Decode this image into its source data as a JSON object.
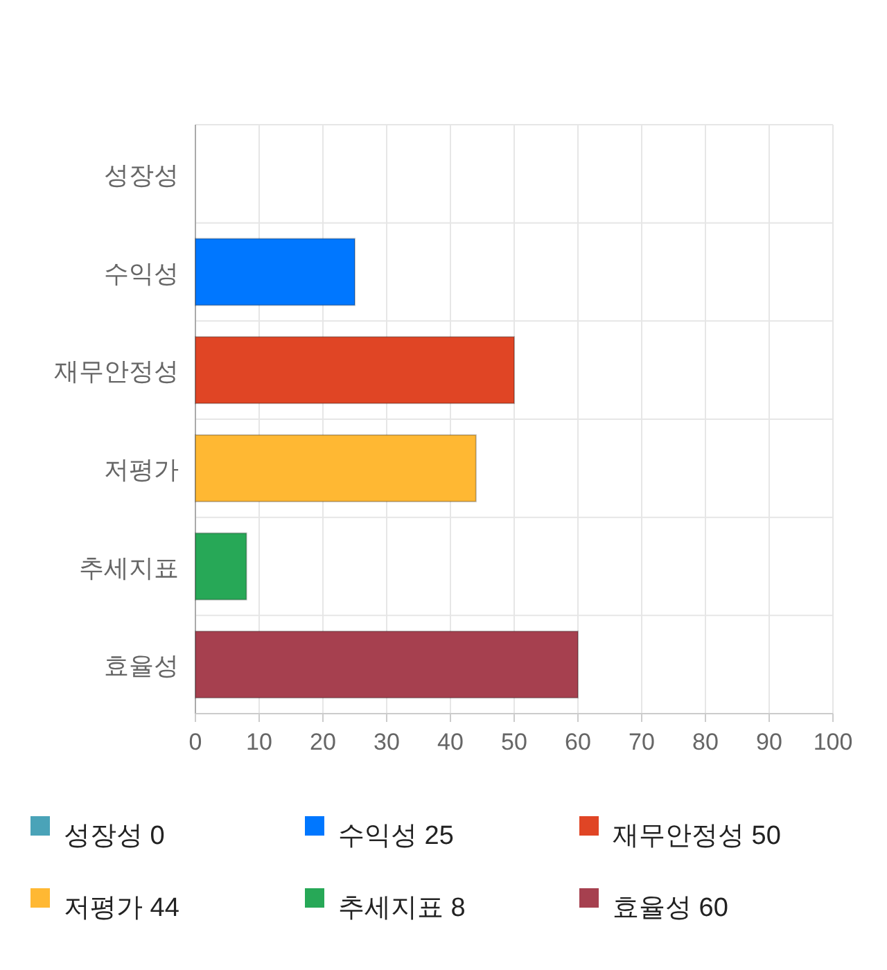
{
  "chart_data": {
    "type": "bar",
    "orientation": "horizontal",
    "categories": [
      "성장성",
      "수익성",
      "재무안정성",
      "저평가",
      "추세지표",
      "효율성"
    ],
    "series": [
      {
        "name": "성장성 0",
        "color": "#4aa3b8",
        "values": [
          0,
          null,
          null,
          null,
          null,
          null
        ]
      },
      {
        "name": "수익성 25",
        "color": "#0077ff",
        "values": [
          null,
          25,
          null,
          null,
          null,
          null
        ]
      },
      {
        "name": "재무안정성 50",
        "color": "#e04525",
        "values": [
          null,
          null,
          50,
          null,
          null,
          null
        ]
      },
      {
        "name": "저평가 44",
        "color": "#ffb833",
        "values": [
          null,
          null,
          null,
          44,
          null,
          null
        ]
      },
      {
        "name": "추세지표 8",
        "color": "#27a857",
        "values": [
          null,
          null,
          null,
          null,
          8,
          null
        ]
      },
      {
        "name": "효율성 60",
        "color": "#a6404f",
        "values": [
          null,
          null,
          null,
          null,
          null,
          60
        ]
      }
    ],
    "xlim": [
      0,
      100
    ],
    "xticks": [
      0,
      10,
      20,
      30,
      40,
      50,
      60,
      70,
      80,
      90,
      100
    ],
    "grid": true,
    "legend": "bottom"
  }
}
